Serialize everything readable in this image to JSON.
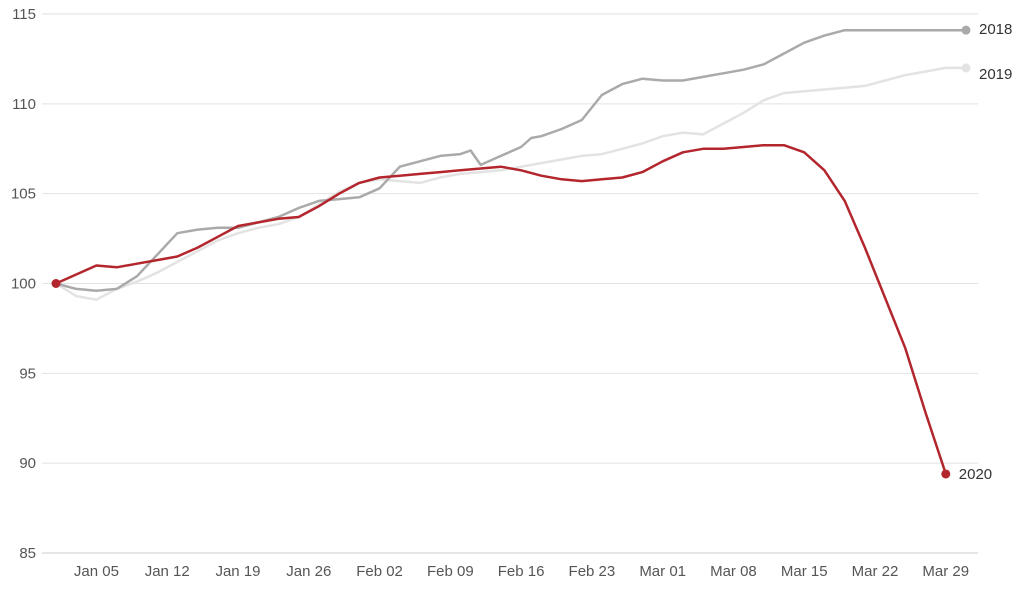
{
  "chart_data": {
    "type": "line",
    "title": "",
    "xlabel": "",
    "ylabel": "",
    "ylim": [
      85,
      115
    ],
    "yticks": [
      85,
      90,
      95,
      100,
      105,
      110,
      115
    ],
    "xlim": [
      0,
      90
    ],
    "xticks": [
      {
        "day": 4,
        "label": "Jan 05"
      },
      {
        "day": 11,
        "label": "Jan 12"
      },
      {
        "day": 18,
        "label": "Jan 19"
      },
      {
        "day": 25,
        "label": "Jan 26"
      },
      {
        "day": 32,
        "label": "Feb 02"
      },
      {
        "day": 39,
        "label": "Feb 09"
      },
      {
        "day": 46,
        "label": "Feb 16"
      },
      {
        "day": 53,
        "label": "Feb 23"
      },
      {
        "day": 60,
        "label": "Mar 01"
      },
      {
        "day": 67,
        "label": "Mar 08"
      },
      {
        "day": 74,
        "label": "Mar 15"
      },
      {
        "day": 81,
        "label": "Mar 22"
      },
      {
        "day": 88,
        "label": "Mar 29"
      }
    ],
    "grid": true,
    "series": [
      {
        "name": "2019",
        "color": "#e3e3e3",
        "x": [
          0,
          2,
          4,
          6,
          8,
          10,
          12,
          14,
          16,
          18,
          20,
          22,
          24,
          26,
          28,
          30,
          32,
          34,
          36,
          38,
          40,
          42,
          44,
          46,
          48,
          50,
          52,
          54,
          56,
          58,
          60,
          62,
          64,
          66,
          68,
          70,
          72,
          74,
          76,
          78,
          80,
          82,
          84,
          86,
          88,
          90
        ],
        "values": [
          100,
          99.3,
          99.1,
          99.7,
          100.1,
          100.6,
          101.2,
          101.8,
          102.4,
          102.8,
          103.1,
          103.3,
          103.7,
          104.4,
          105.1,
          105.6,
          105.8,
          105.7,
          105.6,
          105.9,
          106.1,
          106.2,
          106.3,
          106.5,
          106.7,
          106.9,
          107.1,
          107.2,
          107.5,
          107.8,
          108.2,
          108.4,
          108.3,
          108.9,
          109.5,
          110.2,
          110.6,
          110.7,
          110.8,
          110.9,
          111.0,
          111.3,
          111.6,
          111.8,
          112.0,
          112.0
        ]
      },
      {
        "name": "2018",
        "color": "#aaaaaa",
        "x": [
          0,
          2,
          4,
          6,
          8,
          10,
          12,
          14,
          16,
          18,
          20,
          22,
          24,
          26,
          28,
          30,
          32,
          34,
          36,
          38,
          40,
          41,
          42,
          44,
          46,
          47,
          48,
          50,
          52,
          54,
          56,
          58,
          60,
          62,
          64,
          66,
          68,
          70,
          72,
          74,
          76,
          78,
          80,
          82,
          84,
          86,
          88,
          90
        ],
        "values": [
          100,
          99.7,
          99.6,
          99.7,
          100.4,
          101.6,
          102.8,
          103.0,
          103.1,
          103.1,
          103.4,
          103.7,
          104.2,
          104.6,
          104.7,
          104.8,
          105.3,
          106.5,
          106.8,
          107.1,
          107.2,
          107.4,
          106.6,
          107.1,
          107.6,
          108.1,
          108.2,
          108.6,
          109.1,
          110.5,
          111.1,
          111.4,
          111.3,
          111.3,
          111.5,
          111.7,
          111.9,
          112.2,
          112.8,
          113.4,
          113.8,
          114.1,
          114.1,
          114.1,
          114.1,
          114.1,
          114.1,
          114.1
        ]
      },
      {
        "name": "2020",
        "color": "#b3262d",
        "x": [
          0,
          2,
          4,
          6,
          8,
          10,
          12,
          14,
          16,
          18,
          20,
          22,
          24,
          26,
          28,
          30,
          32,
          34,
          36,
          38,
          40,
          42,
          44,
          46,
          48,
          50,
          52,
          54,
          56,
          58,
          60,
          62,
          64,
          66,
          68,
          70,
          72,
          74,
          76,
          78,
          80,
          82,
          84,
          86,
          88
        ],
        "values": [
          100,
          100.5,
          101.0,
          100.9,
          101.1,
          101.3,
          101.5,
          102.0,
          102.6,
          103.2,
          103.4,
          103.6,
          103.7,
          104.3,
          105.0,
          105.6,
          105.9,
          106.0,
          106.1,
          106.2,
          106.3,
          106.4,
          106.5,
          106.3,
          106.0,
          105.8,
          105.7,
          105.8,
          105.9,
          106.2,
          106.8,
          107.3,
          107.5,
          107.5,
          107.6,
          107.7,
          107.7,
          107.3,
          106.3,
          104.6,
          102.0,
          99.2,
          96.4,
          92.8,
          89.4
        ]
      }
    ],
    "legend": "inline-right"
  }
}
